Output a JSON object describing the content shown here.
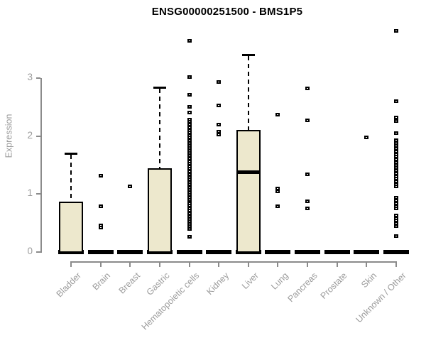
{
  "title": "ENSG00000251500 - BMS1P5",
  "y_axis": {
    "label": "Expression",
    "tick_labels": [
      "0",
      "1",
      "2",
      "3"
    ]
  },
  "colors": {
    "box_fill": "#EDE8CD",
    "box_stroke": "#000000",
    "axis_line": "#8b8b8b",
    "label_text": "#9b9b9b",
    "title_text": "#000000",
    "background": "#ffffff"
  },
  "chart_data": {
    "type": "boxplot",
    "title": "ENSG00000251500 - BMS1P5",
    "xlabel": "",
    "ylabel": "Expression",
    "ylim": [
      0,
      3.9
    ],
    "yticks": [
      0,
      1,
      2,
      3
    ],
    "grid": false,
    "legend": false,
    "categories": [
      "Bladder",
      "Brain",
      "Breast",
      "Gastric",
      "Hematopoietic cells",
      "Kidney",
      "Liver",
      "Lung",
      "Pancreas",
      "Prostate",
      "Skin",
      "Unknown / Other"
    ],
    "series": [
      {
        "category": "Bladder",
        "whisker_low": 0,
        "q1": 0,
        "median": 0,
        "q3": 0.87,
        "whisker_high": 1.7,
        "outliers": []
      },
      {
        "category": "Brain",
        "whisker_low": 0,
        "q1": 0,
        "median": 0,
        "q3": 0,
        "whisker_high": 0,
        "outliers": [
          1.32,
          0.8,
          0.46,
          0.43
        ]
      },
      {
        "category": "Breast",
        "whisker_low": 0,
        "q1": 0,
        "median": 0,
        "q3": 0,
        "whisker_high": 0,
        "outliers": [
          1.14
        ]
      },
      {
        "category": "Gastric",
        "whisker_low": 0,
        "q1": 0,
        "median": 0,
        "q3": 1.44,
        "whisker_high": 2.84,
        "outliers": []
      },
      {
        "category": "Hematopoietic cells",
        "whisker_low": 0,
        "q1": 0,
        "median": 0,
        "q3": 0,
        "whisker_high": 0,
        "outliers": [
          3.65,
          3.02,
          2.72,
          2.51,
          2.41,
          2.29,
          2.25,
          2.2,
          2.16,
          2.11,
          2.07,
          2.02,
          1.98,
          1.93,
          1.89,
          1.84,
          1.8,
          1.75,
          1.71,
          1.66,
          1.62,
          1.57,
          1.53,
          1.48,
          1.44,
          1.39,
          1.35,
          1.3,
          1.26,
          1.21,
          1.17,
          1.12,
          1.08,
          1.03,
          0.99,
          0.94,
          0.9,
          0.85,
          0.81,
          0.76,
          0.72,
          0.67,
          0.63,
          0.58,
          0.54,
          0.49,
          0.45,
          0.4,
          0.27
        ]
      },
      {
        "category": "Kidney",
        "whisker_low": 0,
        "q1": 0,
        "median": 0,
        "q3": 0,
        "whisker_high": 0,
        "outliers": [
          2.94,
          2.53,
          2.2,
          2.08,
          2.03
        ]
      },
      {
        "category": "Liver",
        "whisker_low": 0,
        "q1": 0,
        "median": 1.38,
        "q3": 2.1,
        "whisker_high": 3.4,
        "outliers": []
      },
      {
        "category": "Lung",
        "whisker_low": 0,
        "q1": 0,
        "median": 0,
        "q3": 0,
        "whisker_high": 0,
        "outliers": [
          2.37,
          1.1,
          1.05,
          0.79
        ]
      },
      {
        "category": "Pancreas",
        "whisker_low": 0,
        "q1": 0,
        "median": 0,
        "q3": 0,
        "whisker_high": 0,
        "outliers": [
          2.83,
          2.28,
          1.35,
          0.88,
          0.76
        ]
      },
      {
        "category": "Prostate",
        "whisker_low": 0,
        "q1": 0,
        "median": 0,
        "q3": 0,
        "whisker_high": 0,
        "outliers": []
      },
      {
        "category": "Skin",
        "whisker_low": 0,
        "q1": 0,
        "median": 0,
        "q3": 0,
        "whisker_high": 0,
        "outliers": [
          1.98
        ]
      },
      {
        "category": "Unknown / Other",
        "whisker_low": 0,
        "q1": 0,
        "median": 0,
        "q3": 0,
        "whisker_high": 0,
        "outliers": [
          3.82,
          2.61,
          2.33,
          2.26,
          2.06,
          1.93,
          1.88,
          1.84,
          1.79,
          1.74,
          1.69,
          1.65,
          1.6,
          1.55,
          1.5,
          1.46,
          1.41,
          1.36,
          1.31,
          1.27,
          1.22,
          1.17,
          1.14,
          0.94,
          0.89,
          0.85,
          0.8,
          0.76,
          0.64,
          0.59,
          0.55,
          0.5,
          0.45,
          0.28
        ]
      }
    ]
  }
}
